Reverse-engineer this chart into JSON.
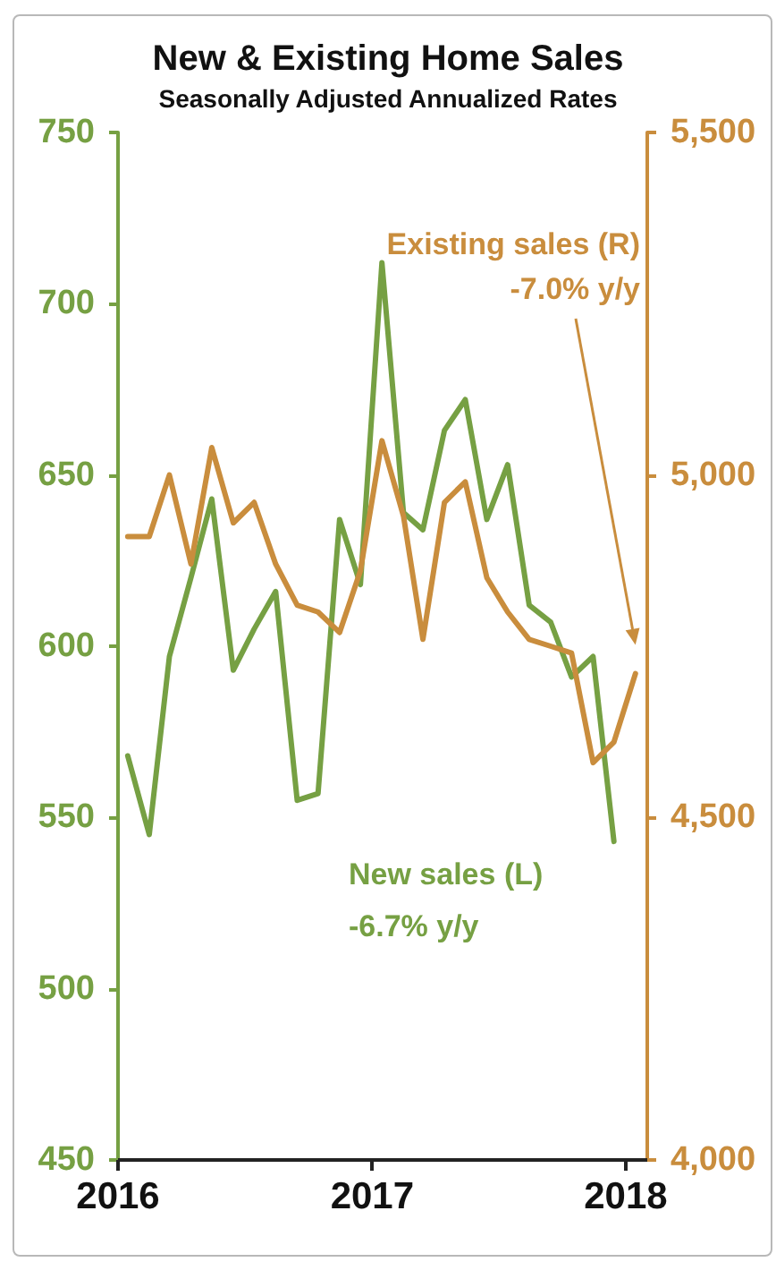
{
  "chart_data": {
    "type": "line",
    "title": "New & Existing Home Sales",
    "subtitle": "Seasonally Adjusted Annualized Rates",
    "x": [
      "2016-01-15",
      "2016-02-15",
      "2016-03-15",
      "2016-04-15",
      "2016-05-15",
      "2016-06-15",
      "2016-07-15",
      "2016-08-15",
      "2016-09-15",
      "2016-10-15",
      "2016-11-15",
      "2016-12-15",
      "2017-01-15",
      "2017-02-15",
      "2017-03-15",
      "2017-04-15",
      "2017-05-15",
      "2017-06-15",
      "2017-07-15",
      "2017-08-15",
      "2017-09-15",
      "2017-10-15",
      "2017-11-15",
      "2017-12-15",
      "2018-01-15"
    ],
    "xlim": [
      "2016",
      "2018-02"
    ],
    "xticks": [
      "2016",
      "2017",
      "2018"
    ],
    "ylim": [
      450,
      750
    ],
    "yticks": [
      450,
      500,
      550,
      600,
      650,
      700,
      750
    ],
    "y2lim": [
      4000,
      5500
    ],
    "y2ticks": [
      {
        "value": 4000,
        "label": "4,000"
      },
      {
        "value": 4500,
        "label": "4,500"
      },
      {
        "value": 5000,
        "label": "5,000"
      },
      {
        "value": 5500,
        "label": "5,500"
      }
    ],
    "series": [
      {
        "name": "New sales (L)",
        "color": "#76a043",
        "values": [
          568,
          545,
          597,
          620,
          643,
          593,
          605,
          616,
          555,
          557,
          637,
          618,
          712,
          639,
          634,
          663,
          672,
          637,
          653,
          612,
          607,
          591,
          597,
          543,
          null
        ]
      },
      {
        "name": "Existing sales (R)",
        "color": "#c98d3d",
        "axis": "y2",
        "values": [
          4910,
          4910,
          5000,
          4870,
          5040,
          4930,
          4960,
          4870,
          4810,
          4800,
          4770,
          4860,
          5050,
          4940,
          4760,
          4960,
          4990,
          4850,
          4800,
          4760,
          4750,
          4740,
          4580,
          4610,
          4710
        ]
      }
    ],
    "annotations": [
      "-6.7% y/y",
      "-7.0% y/y"
    ]
  }
}
